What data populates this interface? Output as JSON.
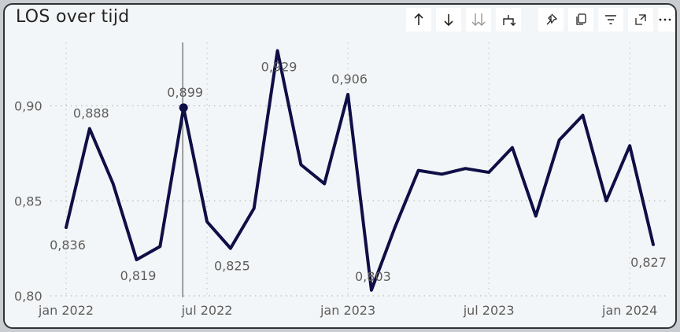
{
  "visual": {
    "title": "LOS over tijd",
    "toolbar": [
      {
        "name": "sort-ascending-icon",
        "label": "↑"
      },
      {
        "name": "sort-descending-icon",
        "label": "↓"
      },
      {
        "name": "expand-all-down-icon",
        "label": "⇊"
      },
      {
        "name": "drill-down-icon",
        "label": "⤵"
      },
      {
        "name": "pin-icon",
        "label": "pin"
      },
      {
        "name": "copy-icon",
        "label": "copy"
      },
      {
        "name": "filter-icon",
        "label": "filter"
      },
      {
        "name": "focus-mode-icon",
        "label": "focus"
      },
      {
        "name": "more-options-icon",
        "label": "···"
      }
    ]
  },
  "chart_data": {
    "type": "line",
    "title": "LOS over tijd",
    "xlabel": "",
    "ylabel": "",
    "x": [
      "2022-01",
      "2022-02",
      "2022-03",
      "2022-04",
      "2022-05",
      "2022-06",
      "2022-07",
      "2022-08",
      "2022-09",
      "2022-10",
      "2022-11",
      "2022-12",
      "2023-01",
      "2023-02",
      "2023-03",
      "2023-04",
      "2023-05",
      "2023-06",
      "2023-07",
      "2023-08",
      "2023-09",
      "2023-10",
      "2023-11",
      "2023-12",
      "2024-01",
      "2024-02"
    ],
    "series": [
      {
        "values": [
          0.836,
          0.888,
          0.859,
          0.819,
          0.826,
          0.899,
          0.839,
          0.825,
          0.846,
          0.929,
          0.869,
          0.859,
          0.906,
          0.803,
          0.836,
          0.866,
          0.864,
          0.867,
          0.865,
          0.878,
          0.842,
          0.882,
          0.895,
          0.85,
          0.879,
          0.827
        ],
        "color": "#0f0e46"
      }
    ],
    "data_labels": [
      {
        "index": 0,
        "text": "0,836"
      },
      {
        "index": 1,
        "text": "0,888"
      },
      {
        "index": 3,
        "text": "0,819"
      },
      {
        "index": 5,
        "text": "0,899"
      },
      {
        "index": 7,
        "text": "0,825"
      },
      {
        "index": 9,
        "text": "0,929"
      },
      {
        "index": 12,
        "text": "0,906"
      },
      {
        "index": 13,
        "text": "0,803"
      },
      {
        "index": 25,
        "text": "0,827"
      }
    ],
    "y_ticks": [
      {
        "value": 0.8,
        "label": "0,80"
      },
      {
        "value": 0.85,
        "label": "0,85"
      },
      {
        "value": 0.9,
        "label": "0,90"
      }
    ],
    "x_ticks": [
      {
        "index": 0,
        "label": "jan 2022"
      },
      {
        "index": 6,
        "label": "jul 2022"
      },
      {
        "index": 12,
        "label": "jan 2023"
      },
      {
        "index": 18,
        "label": "jul 2023"
      },
      {
        "index": 24,
        "label": "jan 2024"
      }
    ],
    "ylim": [
      0.8,
      0.935
    ],
    "grid": true,
    "highlight": {
      "index": 5,
      "cursor_line": true
    }
  }
}
